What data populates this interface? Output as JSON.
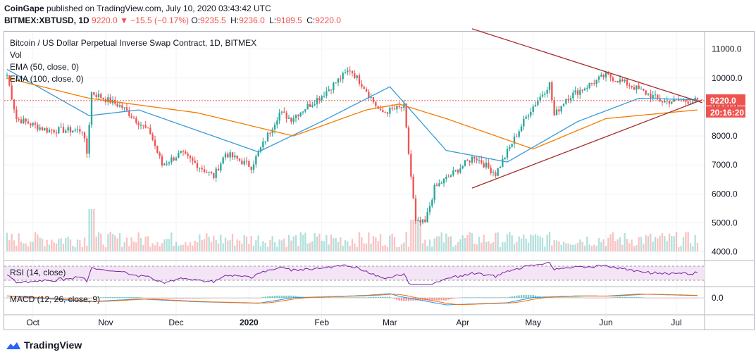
{
  "header": {
    "publisher": "CoinGape",
    "published_text": "published on TradingView.com, July 10, 2020 03:43:42 UTC",
    "symbol": "BITMEX:XBTUSD, 1D",
    "last": "9220.0",
    "change": "▼ −15.5 (−0.17%)",
    "open_label": "O:",
    "open": "9235.5",
    "high_label": "H:",
    "high": "9236.0",
    "low_label": "L:",
    "low": "9189.5",
    "close_label": "C:",
    "close": "9220.0"
  },
  "legend": {
    "title": "Bitcoin / US Dollar Perpetual Inverse Swap Contract, 1D, BITMEX",
    "vol": "Vol",
    "ema50": "EMA (50, close, 0)",
    "ema100": "EMA (100, close, 0)",
    "rsi": "RSI (14, close)",
    "macd": "MACD (12, 26, close, 9)"
  },
  "price_tag": "9220.0",
  "countdown_tag": "20:16:20",
  "macd_axis_label": "0.0",
  "footer": {
    "brand": "TradingView"
  },
  "colors": {
    "up": "#26a69a",
    "down": "#ef5350",
    "ema50": "#3a9ad9",
    "ema100": "#f57c00",
    "trendline": "#a52a2a",
    "rsi": "#7b1fa2",
    "rsi_band": "#f3e5f5",
    "macd": "#2196f3",
    "signal": "#ff6d00"
  },
  "chart_data": {
    "type": "candlestick",
    "title": "Bitcoin / US Dollar Perpetual Inverse Swap Contract, 1D, BITMEX",
    "y_ticks": [
      4000,
      5000,
      6000,
      7000,
      8000,
      9000,
      10000,
      11000
    ],
    "ylim": [
      3700,
      11600
    ],
    "x_ticks": [
      "Oct",
      "Nov",
      "Dec",
      "2020",
      "Feb",
      "Mar",
      "Apr",
      "May",
      "Jun",
      "Jul"
    ],
    "x_tick_dates": [
      "2019-10-01",
      "2019-11-01",
      "2019-12-01",
      "2020-01-01",
      "2020-02-01",
      "2020-03-01",
      "2020-04-01",
      "2020-05-01",
      "2020-06-01",
      "2020-07-01"
    ],
    "first_date": "2019-09-20",
    "last_date": "2020-07-10",
    "close_anchors": [
      [
        "2019-09-20",
        10100
      ],
      [
        "2019-09-24",
        8600
      ],
      [
        "2019-10-07",
        8200
      ],
      [
        "2019-10-22",
        8200
      ],
      [
        "2019-10-24",
        7400
      ],
      [
        "2019-10-26",
        9500
      ],
      [
        "2019-11-08",
        9000
      ],
      [
        "2019-11-20",
        8100
      ],
      [
        "2019-11-25",
        7000
      ],
      [
        "2019-12-03",
        7400
      ],
      [
        "2019-12-17",
        6600
      ],
      [
        "2019-12-22",
        7400
      ],
      [
        "2020-01-02",
        6950
      ],
      [
        "2020-01-14",
        8800
      ],
      [
        "2020-01-19",
        8600
      ],
      [
        "2020-02-01",
        9400
      ],
      [
        "2020-02-13",
        10300
      ],
      [
        "2020-02-19",
        9700
      ],
      [
        "2020-02-26",
        8800
      ],
      [
        "2020-03-07",
        9000
      ],
      [
        "2020-03-12",
        5000
      ],
      [
        "2020-03-16",
        5000
      ],
      [
        "2020-03-20",
        6200
      ],
      [
        "2020-04-06",
        7300
      ],
      [
        "2020-04-15",
        6700
      ],
      [
        "2020-04-29",
        8800
      ],
      [
        "2020-05-08",
        9800
      ],
      [
        "2020-05-10",
        8700
      ],
      [
        "2020-05-15",
        9300
      ],
      [
        "2020-06-01",
        10100
      ],
      [
        "2020-06-10",
        9800
      ],
      [
        "2020-06-25",
        9200
      ],
      [
        "2020-07-10",
        9220
      ]
    ],
    "ema50_anchors": [
      [
        "2019-09-20",
        10300
      ],
      [
        "2019-10-25",
        8700
      ],
      [
        "2019-11-15",
        8900
      ],
      [
        "2020-01-05",
        7450
      ],
      [
        "2020-02-01",
        8500
      ],
      [
        "2020-03-01",
        9700
      ],
      [
        "2020-03-25",
        7500
      ],
      [
        "2020-04-20",
        7100
      ],
      [
        "2020-05-20",
        8500
      ],
      [
        "2020-06-15",
        9300
      ],
      [
        "2020-07-10",
        9250
      ]
    ],
    "ema100_anchors": [
      [
        "2019-09-20",
        10000
      ],
      [
        "2019-10-25",
        9300
      ],
      [
        "2019-12-10",
        8800
      ],
      [
        "2020-01-20",
        8000
      ],
      [
        "2020-02-20",
        8900
      ],
      [
        "2020-03-05",
        9100
      ],
      [
        "2020-03-25",
        8600
      ],
      [
        "2020-05-01",
        7550
      ],
      [
        "2020-06-01",
        8600
      ],
      [
        "2020-07-10",
        8900
      ]
    ],
    "trendlines": [
      {
        "from": [
          "2020-04-05",
          11700
        ],
        "to": [
          "2020-07-12",
          9150
        ]
      },
      {
        "from": [
          "2020-04-05",
          6200
        ],
        "to": [
          "2020-07-12",
          9250
        ]
      }
    ]
  }
}
